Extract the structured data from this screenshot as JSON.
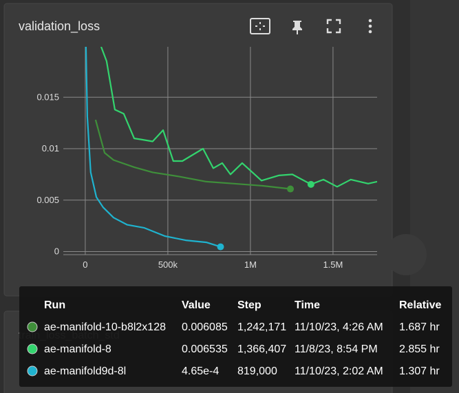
{
  "card": {
    "title": "validation_loss"
  },
  "second_card": {
    "title": "train_loss_batch_std"
  },
  "chart_data": {
    "type": "line",
    "grid": true,
    "xlim": [
      -133000,
      1767000
    ],
    "ylim": [
      -0.0003,
      0.0199
    ],
    "xticks": [
      0,
      {
        "value": 500000,
        "label": "500k"
      },
      {
        "value": 1000000,
        "label": "1M"
      },
      {
        "value": 1500000,
        "label": "1.5M"
      }
    ],
    "yticks": [
      0,
      0.005,
      0.01,
      0.015
    ],
    "series": [
      {
        "name": "ae-manifold-10-b8l2x128",
        "color": "#3f8f3a",
        "x": [
          62500,
          117000,
          171000,
          296000,
          408000,
          567000,
          733000,
          900000,
          1067000,
          1242171
        ],
        "values": [
          0.0128,
          0.0096,
          0.0089,
          0.0082,
          0.0077,
          0.0073,
          0.0068,
          0.0066,
          0.0064,
          0.006085
        ]
      },
      {
        "name": "ae-manifold-8",
        "color": "#33d46e",
        "x": [
          96000,
          129000,
          179000,
          233000,
          296000,
          338000,
          408000,
          471000,
          533000,
          588000,
          713000,
          775000,
          829000,
          879000,
          950000,
          1067000,
          1171000,
          1254000,
          1366407,
          1442000,
          1525000,
          1608000,
          1713000,
          1767000
        ],
        "values": [
          0.0199,
          0.0185,
          0.0138,
          0.0134,
          0.011,
          0.0109,
          0.0107,
          0.0118,
          0.0088,
          0.0088,
          0.01,
          0.0081,
          0.0086,
          0.0075,
          0.0086,
          0.0069,
          0.0074,
          0.0075,
          0.006535,
          0.007,
          0.0063,
          0.007,
          0.0066,
          0.0068
        ]
      },
      {
        "name": "ae-manifold9d-8l",
        "color": "#1fb3cf",
        "x": [
          4000,
          12500,
          33000,
          67000,
          108000,
          171000,
          254000,
          358000,
          483000,
          608000,
          733000,
          819000
        ],
        "values": [
          0.0199,
          0.0131,
          0.0077,
          0.0053,
          0.0043,
          0.0033,
          0.0026,
          0.0023,
          0.0015,
          0.0011,
          0.0009,
          0.000465
        ]
      }
    ]
  },
  "tooltip": {
    "columns": [
      "Run",
      "Value",
      "Step",
      "Time",
      "Relative"
    ],
    "rows": [
      [
        "0.006085",
        "1,242,171",
        "11/10/23, 4:26 AM",
        "1.687 hr"
      ],
      [
        "0.006535",
        "1,366,407",
        "11/8/23, 8:54 PM",
        "2.855 hr"
      ],
      [
        "4.65e-4",
        "819,000",
        "11/10/23, 2:02 AM",
        "1.307 hr"
      ]
    ]
  }
}
